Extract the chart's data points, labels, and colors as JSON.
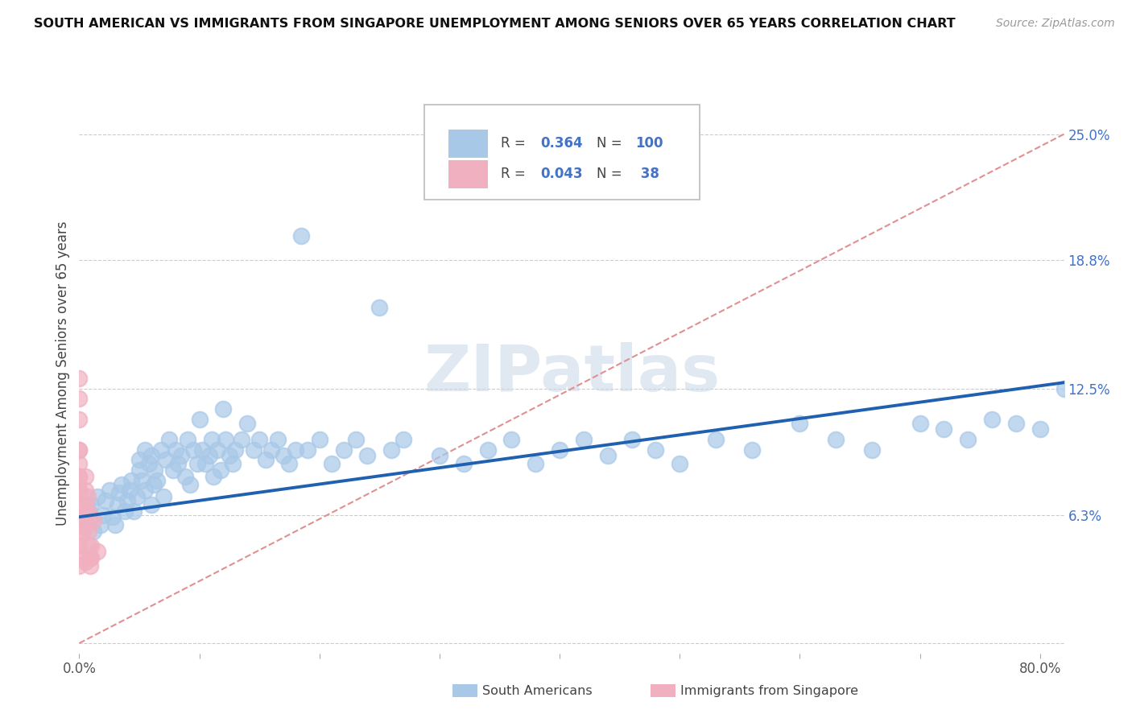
{
  "title": "SOUTH AMERICAN VS IMMIGRANTS FROM SINGAPORE UNEMPLOYMENT AMONG SENIORS OVER 65 YEARS CORRELATION CHART",
  "source": "Source: ZipAtlas.com",
  "ylabel": "Unemployment Among Seniors over 65 years",
  "xlim": [
    0.0,
    0.82
  ],
  "ylim": [
    -0.005,
    0.27
  ],
  "y_tick_vals_right": [
    0.25,
    0.188,
    0.125,
    0.063,
    0.0
  ],
  "y_tick_labels_right": [
    "25.0%",
    "18.8%",
    "12.5%",
    "6.3%",
    ""
  ],
  "R_sa": 0.364,
  "N_sa": 100,
  "R_sg": 0.043,
  "N_sg": 38,
  "color_sa": "#a8c8e8",
  "color_sg": "#f0b0c0",
  "line_color_sa": "#2060b0",
  "line_color_ref": "#e09090",
  "watermark": "ZIPatlas",
  "legend_label_sa": "South Americans",
  "legend_label_sg": "Immigrants from Singapore",
  "sa_x": [
    0.005,
    0.008,
    0.01,
    0.012,
    0.015,
    0.018,
    0.02,
    0.022,
    0.025,
    0.028,
    0.03,
    0.032,
    0.033,
    0.035,
    0.038,
    0.04,
    0.042,
    0.043,
    0.045,
    0.048,
    0.05,
    0.05,
    0.052,
    0.055,
    0.055,
    0.058,
    0.06,
    0.06,
    0.062,
    0.063,
    0.065,
    0.068,
    0.07,
    0.072,
    0.075,
    0.078,
    0.08,
    0.082,
    0.085,
    0.088,
    0.09,
    0.092,
    0.095,
    0.098,
    0.1,
    0.102,
    0.105,
    0.108,
    0.11,
    0.112,
    0.115,
    0.118,
    0.12,
    0.122,
    0.125,
    0.128,
    0.13,
    0.135,
    0.14,
    0.145,
    0.15,
    0.155,
    0.16,
    0.165,
    0.17,
    0.175,
    0.18,
    0.185,
    0.19,
    0.2,
    0.21,
    0.22,
    0.23,
    0.24,
    0.25,
    0.26,
    0.27,
    0.3,
    0.32,
    0.34,
    0.36,
    0.38,
    0.4,
    0.42,
    0.44,
    0.46,
    0.48,
    0.5,
    0.53,
    0.56,
    0.6,
    0.63,
    0.66,
    0.7,
    0.72,
    0.74,
    0.76,
    0.78,
    0.8,
    0.82
  ],
  "sa_y": [
    0.06,
    0.065,
    0.068,
    0.055,
    0.072,
    0.058,
    0.063,
    0.07,
    0.075,
    0.062,
    0.058,
    0.068,
    0.074,
    0.078,
    0.065,
    0.07,
    0.075,
    0.08,
    0.065,
    0.072,
    0.085,
    0.09,
    0.08,
    0.095,
    0.075,
    0.088,
    0.092,
    0.068,
    0.078,
    0.085,
    0.08,
    0.095,
    0.072,
    0.09,
    0.1,
    0.085,
    0.095,
    0.088,
    0.092,
    0.082,
    0.1,
    0.078,
    0.095,
    0.088,
    0.11,
    0.095,
    0.088,
    0.092,
    0.1,
    0.082,
    0.095,
    0.085,
    0.115,
    0.1,
    0.092,
    0.088,
    0.095,
    0.1,
    0.108,
    0.095,
    0.1,
    0.09,
    0.095,
    0.1,
    0.092,
    0.088,
    0.095,
    0.2,
    0.095,
    0.1,
    0.088,
    0.095,
    0.1,
    0.092,
    0.165,
    0.095,
    0.1,
    0.092,
    0.088,
    0.095,
    0.1,
    0.088,
    0.095,
    0.1,
    0.092,
    0.1,
    0.095,
    0.088,
    0.1,
    0.095,
    0.108,
    0.1,
    0.095,
    0.108,
    0.105,
    0.1,
    0.11,
    0.108,
    0.105,
    0.125
  ],
  "sg_x": [
    0.0,
    0.0,
    0.0,
    0.0,
    0.0,
    0.0,
    0.0,
    0.0,
    0.0,
    0.0,
    0.0,
    0.0,
    0.0,
    0.0,
    0.0,
    0.0,
    0.0,
    0.0,
    0.0,
    0.0,
    0.003,
    0.003,
    0.005,
    0.005,
    0.005,
    0.005,
    0.006,
    0.007,
    0.007,
    0.008,
    0.008,
    0.009,
    0.009,
    0.01,
    0.01,
    0.01,
    0.012,
    0.015
  ],
  "sg_y": [
    0.048,
    0.055,
    0.062,
    0.068,
    0.075,
    0.082,
    0.088,
    0.095,
    0.068,
    0.062,
    0.075,
    0.082,
    0.058,
    0.048,
    0.042,
    0.095,
    0.11,
    0.12,
    0.13,
    0.038,
    0.055,
    0.062,
    0.068,
    0.075,
    0.082,
    0.04,
    0.058,
    0.065,
    0.072,
    0.048,
    0.055,
    0.042,
    0.038,
    0.062,
    0.048,
    0.042,
    0.06,
    0.045
  ],
  "reg_line_x0": 0.0,
  "reg_line_y0": 0.062,
  "reg_line_x1": 0.82,
  "reg_line_y1": 0.128,
  "ref_line_x0": 0.0,
  "ref_line_y0": 0.0,
  "ref_line_x1": 0.82,
  "ref_line_y1": 0.25
}
